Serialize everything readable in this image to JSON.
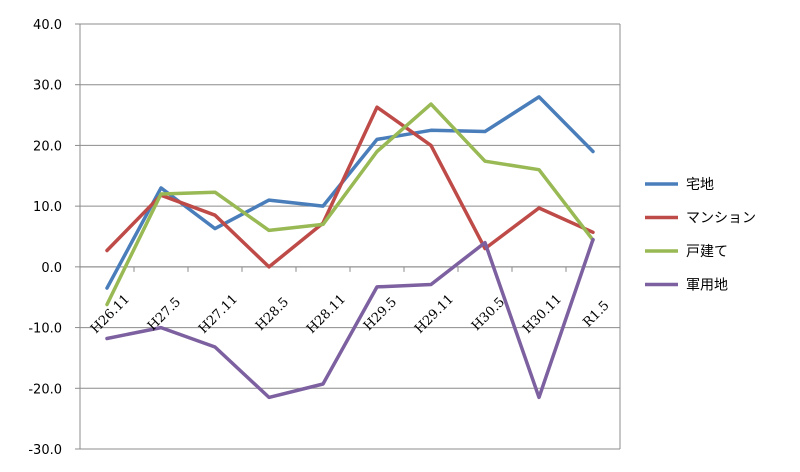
{
  "chart_data": {
    "type": "line",
    "categories": [
      "H26.11",
      "H27.5",
      "H27.11",
      "H28.5",
      "H28.11",
      "H29.5",
      "H29.11",
      "H30.5",
      "H30.11",
      "R1.5"
    ],
    "series": [
      {
        "name": "宅地",
        "color": "#4a7ebb",
        "values": [
          -3.5,
          13.0,
          6.3,
          11.0,
          10.0,
          21.0,
          22.5,
          22.3,
          28.0,
          19.0
        ]
      },
      {
        "name": "マンション",
        "color": "#be4b48",
        "values": [
          2.7,
          11.8,
          8.5,
          0.0,
          7.2,
          26.3,
          20.0,
          3.0,
          9.7,
          5.7
        ]
      },
      {
        "name": "戸建て",
        "color": "#98b954",
        "values": [
          -6.2,
          12.0,
          12.3,
          6.0,
          7.0,
          19.0,
          26.8,
          17.4,
          16.0,
          4.4
        ]
      },
      {
        "name": "軍用地",
        "color": "#7d60a0",
        "values": [
          -11.8,
          -10.0,
          -13.2,
          -21.5,
          -19.3,
          -3.3,
          -2.9,
          4.0,
          -21.5,
          4.5
        ]
      }
    ],
    "yticks": [
      "40.0",
      "30.0",
      "20.0",
      "10.0",
      "0.0",
      "-10.0",
      "-20.0",
      "-30.0"
    ],
    "ylim": [
      -30,
      40
    ],
    "grid": true,
    "legend_position": "right"
  }
}
